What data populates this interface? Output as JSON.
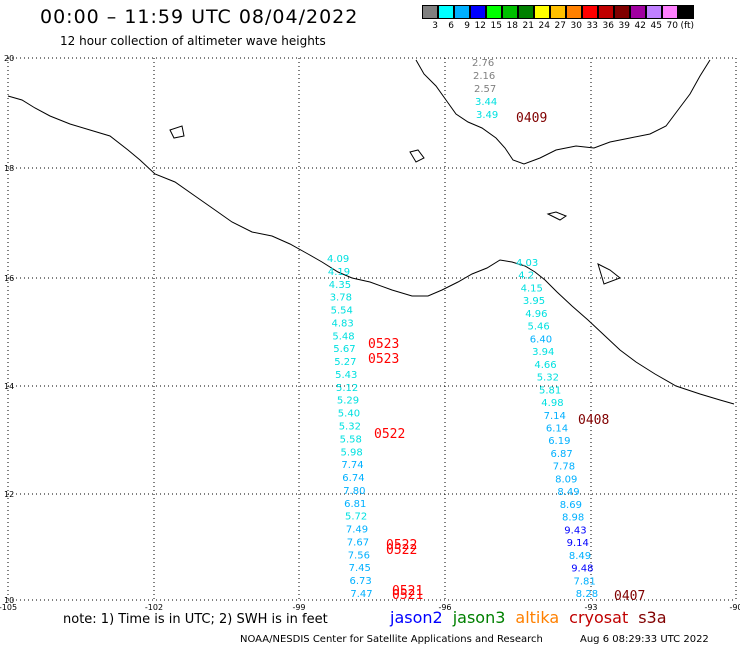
{
  "header": {
    "title": "00:00 – 11:59 UTC 08/04/2022",
    "subtitle": "12 hour collection of altimeter wave heights"
  },
  "colorbar": {
    "colors": [
      "#808080",
      "#00ffff",
      "#00b0ff",
      "#0000ff",
      "#00ff00",
      "#00c000",
      "#008000",
      "#ffff00",
      "#ffc000",
      "#ff8000",
      "#ff0000",
      "#c00000",
      "#800000",
      "#a000a0",
      "#c080ff",
      "#ff80ff",
      "#000000"
    ],
    "labels": [
      "3",
      "6",
      "9",
      "12",
      "15",
      "18",
      "21",
      "24",
      "27",
      "30",
      "33",
      "36",
      "39",
      "42",
      "45",
      "70",
      "(ft)"
    ]
  },
  "axes": {
    "lat_labels": [
      "20",
      "18",
      "16",
      "14",
      "12",
      "10"
    ],
    "lon_labels": [
      "-105",
      "-102",
      "-99",
      "-96",
      "-93",
      "-90"
    ]
  },
  "tracks": [
    {
      "name": "left-track",
      "points": [
        {
          "v": "4.09",
          "c": "#00e0e0"
        },
        {
          "v": "4.19",
          "c": "#00e0e0"
        },
        {
          "v": "4.35",
          "c": "#00e0e0"
        },
        {
          "v": "3.78",
          "c": "#00e0e0"
        },
        {
          "v": "5.54",
          "c": "#00e0e0"
        },
        {
          "v": "4.83",
          "c": "#00e0e0"
        },
        {
          "v": "5.48",
          "c": "#00e0e0"
        },
        {
          "v": "5.67",
          "c": "#00e0e0"
        },
        {
          "v": "5.27",
          "c": "#00e0e0"
        },
        {
          "v": "5.43",
          "c": "#00e0e0"
        },
        {
          "v": "5.12",
          "c": "#00e0e0"
        },
        {
          "v": "5.29",
          "c": "#00e0e0"
        },
        {
          "v": "5.40",
          "c": "#00e0e0"
        },
        {
          "v": "5.32",
          "c": "#00e0e0"
        },
        {
          "v": "5.58",
          "c": "#00e0e0"
        },
        {
          "v": "5.98",
          "c": "#00e0e0"
        },
        {
          "v": "7.74",
          "c": "#00b0ff"
        },
        {
          "v": "6.74",
          "c": "#00b0ff"
        },
        {
          "v": "7.80",
          "c": "#00b0ff"
        },
        {
          "v": "6.81",
          "c": "#00b0ff"
        },
        {
          "v": "5.72",
          "c": "#00e0e0"
        },
        {
          "v": "7.49",
          "c": "#00b0ff"
        },
        {
          "v": "7.67",
          "c": "#00b0ff"
        },
        {
          "v": "7.56",
          "c": "#00b0ff"
        },
        {
          "v": "7.45",
          "c": "#00b0ff"
        },
        {
          "v": "6.73",
          "c": "#00b0ff"
        },
        {
          "v": "7.47",
          "c": "#00b0ff"
        }
      ]
    },
    {
      "name": "right-track",
      "points": [
        {
          "v": "4.03",
          "c": "#00e0e0"
        },
        {
          "v": "4.2",
          "c": "#00e0e0"
        },
        {
          "v": "4.15",
          "c": "#00e0e0"
        },
        {
          "v": "3.95",
          "c": "#00e0e0"
        },
        {
          "v": "4.96",
          "c": "#00e0e0"
        },
        {
          "v": "5.46",
          "c": "#00e0e0"
        },
        {
          "v": "6.40",
          "c": "#00b0ff"
        },
        {
          "v": "3.94",
          "c": "#00e0e0"
        },
        {
          "v": "4.66",
          "c": "#00e0e0"
        },
        {
          "v": "5.32",
          "c": "#00e0e0"
        },
        {
          "v": "5.81",
          "c": "#00e0e0"
        },
        {
          "v": "4.98",
          "c": "#00e0e0"
        },
        {
          "v": "7.14",
          "c": "#00b0ff"
        },
        {
          "v": "6.14",
          "c": "#00b0ff"
        },
        {
          "v": "6.19",
          "c": "#00b0ff"
        },
        {
          "v": "6.87",
          "c": "#00b0ff"
        },
        {
          "v": "7.78",
          "c": "#00b0ff"
        },
        {
          "v": "8.09",
          "c": "#00b0ff"
        },
        {
          "v": "8.49",
          "c": "#00b0ff"
        },
        {
          "v": "8.69",
          "c": "#00b0ff"
        },
        {
          "v": "8.98",
          "c": "#00b0ff"
        },
        {
          "v": "9.43",
          "c": "#0000ff"
        },
        {
          "v": "9.14",
          "c": "#0000ff"
        },
        {
          "v": "8.49",
          "c": "#00b0ff"
        },
        {
          "v": "9.48",
          "c": "#0000ff"
        },
        {
          "v": "7.81",
          "c": "#00b0ff"
        },
        {
          "v": "8.28",
          "c": "#00b0ff"
        }
      ]
    },
    {
      "name": "top-track",
      "points": [
        {
          "v": "2.76",
          "c": "#808080"
        },
        {
          "v": "2.16",
          "c": "#808080"
        },
        {
          "v": "2.57",
          "c": "#808080"
        },
        {
          "v": "3.44",
          "c": "#00e0e0"
        },
        {
          "v": "3.49",
          "c": "#00e0e0"
        }
      ]
    }
  ],
  "time_labels": [
    {
      "t": "0523",
      "c": "#ff0000"
    },
    {
      "t": "0523",
      "c": "#ff0000"
    },
    {
      "t": "0522",
      "c": "#ff0000"
    },
    {
      "t": "0522",
      "c": "#ff0000"
    },
    {
      "t": "0522",
      "c": "#ff0000"
    },
    {
      "t": "0521",
      "c": "#ff0000"
    },
    {
      "t": "0521",
      "c": "#ff0000"
    },
    {
      "t": "0409",
      "c": "#800000"
    },
    {
      "t": "0408",
      "c": "#800000"
    },
    {
      "t": "0407",
      "c": "#800000"
    }
  ],
  "footer": {
    "note": "note: 1) Time is in UTC; 2) SWH is in feet",
    "legend": [
      {
        "label": "jason2",
        "color": "#0000ff"
      },
      {
        "label": "jason3",
        "color": "#008000"
      },
      {
        "label": "altika",
        "color": "#ff8000"
      },
      {
        "label": "cryosat",
        "color": "#c00000"
      },
      {
        "label": "s3a",
        "color": "#800000"
      }
    ],
    "credit": "NOAA/NESDIS Center for Satellite Applications and Research",
    "stamp": "Aug  6 08:29:33 UTC 2022"
  }
}
